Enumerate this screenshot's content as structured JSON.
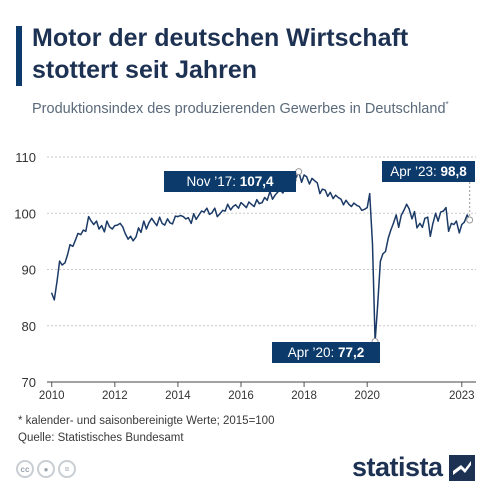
{
  "header": {
    "title": "Motor der deutschen Wirtschaft stottert seit Jahren",
    "subtitle": "Produktionsindex des produzierenden Gewerbes in Deutschland",
    "subtitle_mark": "*"
  },
  "footer": {
    "footnote": "* kalender- und saisonbereinigte Werte; 2015=100",
    "source": "Quelle: Statistisches Bundesamt",
    "brand": "statista"
  },
  "colors": {
    "line": "#1b3a66",
    "accent": "#0b3a6b",
    "callout_bg": "#0b3a6b",
    "grid": "#c8c8c8"
  },
  "icons": [
    "creative-commons-icon",
    "attribution-icon",
    "no-derivatives-icon",
    "statista-logo-icon"
  ],
  "chart_data": {
    "type": "line",
    "title": "",
    "xlabel": "",
    "ylabel": "",
    "ylim": [
      70,
      110
    ],
    "y_ticks": [
      70,
      80,
      90,
      100,
      110
    ],
    "x_tick_labels": [
      "2010",
      "2012",
      "2014",
      "2016",
      "2018",
      "2020",
      "2023"
    ],
    "x_tick_positions": [
      2010,
      2012,
      2014,
      2016,
      2018,
      2020,
      2023
    ],
    "grid": true,
    "series": [
      {
        "x": [
          2010.0,
          2010.08,
          2010.17,
          2010.25,
          2010.33,
          2010.42,
          2010.5,
          2010.58,
          2010.67,
          2010.75,
          2010.83,
          2010.92,
          2011.0,
          2011.08,
          2011.17,
          2011.25,
          2011.33,
          2011.42,
          2011.5,
          2011.58,
          2011.67,
          2011.75,
          2011.83,
          2011.92,
          2012.0,
          2012.08,
          2012.17,
          2012.25,
          2012.33,
          2012.42,
          2012.5,
          2012.58,
          2012.67,
          2012.75,
          2012.83,
          2012.92,
          2013.0,
          2013.08,
          2013.17,
          2013.25,
          2013.33,
          2013.42,
          2013.5,
          2013.58,
          2013.67,
          2013.75,
          2013.83,
          2013.92,
          2014.0,
          2014.08,
          2014.17,
          2014.25,
          2014.33,
          2014.42,
          2014.5,
          2014.58,
          2014.67,
          2014.75,
          2014.83,
          2014.92,
          2015.0,
          2015.08,
          2015.17,
          2015.25,
          2015.33,
          2015.42,
          2015.5,
          2015.58,
          2015.67,
          2015.75,
          2015.83,
          2015.92,
          2016.0,
          2016.08,
          2016.17,
          2016.25,
          2016.33,
          2016.42,
          2016.5,
          2016.58,
          2016.67,
          2016.75,
          2016.83,
          2016.92,
          2017.0,
          2017.08,
          2017.17,
          2017.25,
          2017.33,
          2017.42,
          2017.5,
          2017.58,
          2017.67,
          2017.75,
          2017.83,
          2017.92,
          2018.0,
          2018.08,
          2018.17,
          2018.25,
          2018.33,
          2018.42,
          2018.5,
          2018.58,
          2018.67,
          2018.75,
          2018.83,
          2018.92,
          2019.0,
          2019.08,
          2019.17,
          2019.25,
          2019.33,
          2019.42,
          2019.5,
          2019.58,
          2019.67,
          2019.75,
          2019.83,
          2019.92,
          2020.0,
          2020.08,
          2020.17,
          2020.25,
          2020.33,
          2020.42,
          2020.5,
          2020.58,
          2020.67,
          2020.75,
          2020.83,
          2020.92,
          2021.0,
          2021.08,
          2021.17,
          2021.25,
          2021.33,
          2021.42,
          2021.5,
          2021.58,
          2021.67,
          2021.75,
          2021.83,
          2021.92,
          2022.0,
          2022.08,
          2022.17,
          2022.25,
          2022.33,
          2022.42,
          2022.5,
          2022.58,
          2022.67,
          2022.75,
          2022.83,
          2022.92,
          2023.0,
          2023.08,
          2023.17,
          2023.25
        ],
        "values": [
          85.8,
          84.6,
          88.0,
          91.5,
          90.8,
          91.2,
          92.6,
          94.4,
          94.1,
          95.2,
          96.4,
          96.2,
          97.0,
          96.8,
          99.4,
          98.6,
          98.0,
          98.6,
          97.2,
          97.8,
          96.7,
          98.6,
          97.6,
          97.2,
          97.8,
          97.9,
          98.2,
          97.6,
          96.4,
          95.4,
          95.9,
          95.1,
          95.8,
          97.4,
          96.6,
          98.6,
          97.2,
          98.3,
          99.1,
          98.4,
          97.8,
          99.3,
          98.2,
          97.9,
          99.0,
          98.3,
          98.1,
          99.5,
          99.4,
          99.6,
          99.4,
          99.0,
          99.2,
          98.2,
          99.9,
          98.9,
          99.7,
          100.4,
          100.2,
          100.9,
          99.8,
          100.1,
          100.9,
          99.4,
          99.9,
          100.5,
          100.4,
          101.6,
          100.6,
          101.2,
          101.5,
          100.9,
          101.9,
          101.5,
          101.0,
          102.0,
          101.6,
          101.2,
          102.4,
          101.7,
          101.9,
          102.8,
          102.3,
          103.9,
          102.5,
          103.2,
          103.8,
          104.1,
          103.6,
          104.7,
          105.8,
          105.6,
          105.5,
          106.4,
          107.4,
          105.5,
          106.8,
          106.5,
          105.2,
          106.2,
          105.8,
          105.4,
          103.5,
          104.3,
          104.1,
          103.0,
          103.7,
          102.6,
          103.2,
          102.8,
          102.5,
          101.5,
          102.3,
          101.6,
          101.2,
          101.8,
          101.4,
          101.2,
          100.5,
          100.7,
          101.0,
          103.5,
          94.5,
          77.2,
          83.5,
          91.5,
          92.8,
          93.2,
          95.6,
          97.0,
          98.2,
          99.7,
          97.5,
          99.6,
          100.6,
          101.6,
          100.8,
          99.0,
          100.3,
          97.4,
          98.2,
          97.5,
          99.1,
          99.3,
          95.9,
          98.1,
          100.0,
          98.6,
          100.2,
          100.4,
          101.0,
          96.8,
          98.2,
          98.0,
          98.6,
          96.5,
          98.0,
          98.4,
          99.7,
          98.8
        ]
      }
    ],
    "annotations": [
      {
        "label": "Nov ’17: ",
        "value_text": "107,4",
        "x": 2017.83,
        "y": 107.4
      },
      {
        "label": "Apr ’20: ",
        "value_text": "77,2",
        "x": 2020.25,
        "y": 77.2
      },
      {
        "label": "Apr ’23: ",
        "value_text": "98,8",
        "x": 2023.25,
        "y": 98.8
      }
    ]
  }
}
